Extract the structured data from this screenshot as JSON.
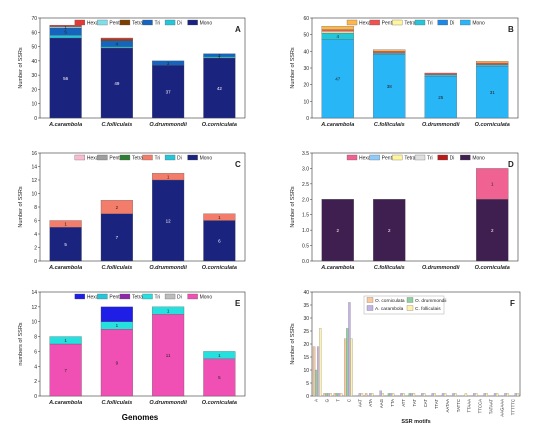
{
  "figure": {
    "xlabel_bottom": "Genomes"
  },
  "chart_data": [
    {
      "id": "A",
      "type": "bar",
      "stacked": true,
      "panel_label": "A",
      "ylabel": "Number of SSRs",
      "xlabel": "",
      "ylim": [
        0,
        70
      ],
      "yticks": [
        0,
        10,
        20,
        30,
        40,
        50,
        60,
        70
      ],
      "legend": {
        "placement": "top"
      },
      "categories": [
        "A.carambola",
        "C.folliculais",
        "O.drummondii",
        "O.corniculata"
      ],
      "series": [
        {
          "name": "Mono",
          "color": "#1a237e",
          "values": [
            56,
            49,
            37,
            42
          ]
        },
        {
          "name": "Di",
          "color": "#26c6da",
          "values": [
            2,
            1,
            0,
            1
          ]
        },
        {
          "name": "Tri",
          "color": "#1565c0",
          "values": [
            5,
            4,
            3,
            2
          ]
        },
        {
          "name": "Tetra",
          "color": "#7b3f00",
          "values": [
            0,
            1,
            0,
            0
          ]
        },
        {
          "name": "Penta",
          "color": "#80deea",
          "values": [
            1,
            0,
            0,
            0
          ]
        },
        {
          "name": "Hexa",
          "color": "#e53935",
          "values": [
            1,
            1,
            0,
            0
          ]
        }
      ],
      "labels": [
        {
          "category": 0,
          "series": "Mono",
          "text": "56"
        },
        {
          "category": 0,
          "series": "Tri",
          "text": "5"
        },
        {
          "category": 0,
          "series": "Penta",
          "text": "1"
        },
        {
          "category": 1,
          "series": "Mono",
          "text": "49"
        },
        {
          "category": 1,
          "series": "Tri",
          "text": "4"
        },
        {
          "category": 2,
          "series": "Mono",
          "text": "37"
        },
        {
          "category": 2,
          "series": "Tri",
          "text": "3"
        },
        {
          "category": 3,
          "series": "Mono",
          "text": "42"
        },
        {
          "category": 3,
          "series": "Tri",
          "text": "2"
        },
        {
          "category": 3,
          "series": "Di",
          "text": "1"
        }
      ]
    },
    {
      "id": "B",
      "type": "bar",
      "stacked": true,
      "panel_label": "B",
      "ylabel": "Number of SSRs",
      "xlabel": "",
      "ylim": [
        0,
        60
      ],
      "yticks": [
        0,
        10,
        20,
        30,
        40,
        50,
        60
      ],
      "legend": {
        "placement": "top"
      },
      "categories": [
        "A.carambola",
        "C.folliculais",
        "O.drummondii",
        "O.corniculata"
      ],
      "series": [
        {
          "name": "Mono",
          "color": "#29b6f6",
          "values": [
            47,
            38,
            25,
            31
          ]
        },
        {
          "name": "Di",
          "color": "#1e88e5",
          "values": [
            0,
            0,
            0,
            0
          ]
        },
        {
          "name": "Tri",
          "color": "#26c6da",
          "values": [
            4,
            1,
            1,
            1
          ]
        },
        {
          "name": "Tetra",
          "color": "#fff59d",
          "values": [
            1,
            0,
            0,
            0
          ]
        },
        {
          "name": "Penta",
          "color": "#ef5350",
          "values": [
            1,
            1,
            1,
            1
          ]
        },
        {
          "name": "Hexa",
          "color": "#ffb74d",
          "values": [
            2,
            1,
            0,
            1
          ]
        }
      ],
      "labels": [
        {
          "category": 0,
          "series": "Mono",
          "text": "47"
        },
        {
          "category": 0,
          "series": "Tri",
          "text": "4"
        },
        {
          "category": 1,
          "series": "Mono",
          "text": "38"
        },
        {
          "category": 2,
          "series": "Mono",
          "text": "25"
        },
        {
          "category": 3,
          "series": "Mono",
          "text": "31"
        }
      ]
    },
    {
      "id": "C",
      "type": "bar",
      "stacked": true,
      "panel_label": "C",
      "ylabel": "Number of SSRs",
      "xlabel": "",
      "ylim": [
        0,
        16
      ],
      "yticks": [
        0,
        2,
        4,
        6,
        8,
        10,
        12,
        14,
        16
      ],
      "legend": {
        "placement": "top"
      },
      "categories": [
        "A.carambola",
        "C.folliculais",
        "O.drummondii",
        "O.corniculata"
      ],
      "series": [
        {
          "name": "Mono",
          "color": "#1a237e",
          "values": [
            5,
            7,
            12,
            6
          ]
        },
        {
          "name": "Di",
          "color": "#26c6da",
          "values": [
            0,
            0,
            0,
            0
          ]
        },
        {
          "name": "Tri",
          "color": "#f47c6b",
          "values": [
            1,
            2,
            1,
            1
          ]
        },
        {
          "name": "Tetra",
          "color": "#2e7d32",
          "values": [
            0,
            0,
            0,
            0
          ]
        },
        {
          "name": "Penta",
          "color": "#9e9e9e",
          "values": [
            0,
            0,
            0,
            0
          ]
        },
        {
          "name": "Hexa",
          "color": "#f8bbd0",
          "values": [
            0,
            0,
            0,
            0
          ]
        }
      ],
      "labels": [
        {
          "category": 0,
          "series": "Mono",
          "text": "5"
        },
        {
          "category": 0,
          "series": "Tri",
          "text": "1"
        },
        {
          "category": 1,
          "series": "Mono",
          "text": "7"
        },
        {
          "category": 1,
          "series": "Tri",
          "text": "2"
        },
        {
          "category": 2,
          "series": "Mono",
          "text": "12"
        },
        {
          "category": 2,
          "series": "Tri",
          "text": "1"
        },
        {
          "category": 3,
          "series": "Mono",
          "text": "6"
        },
        {
          "category": 3,
          "series": "Tri",
          "text": "1"
        }
      ]
    },
    {
      "id": "D",
      "type": "bar",
      "stacked": true,
      "panel_label": "D",
      "ylabel": "Number of SSRs",
      "xlabel": "",
      "ylim": [
        0,
        3.5
      ],
      "yticks": [
        0,
        0.5,
        1.0,
        1.5,
        2.0,
        2.5,
        3.0,
        3.5
      ],
      "legend": {
        "placement": "top"
      },
      "categories": [
        "A.carambola",
        "C.folliculais",
        "O.drummondii",
        "O.corniculata"
      ],
      "series": [
        {
          "name": "Mono",
          "color": "#3f1f4f",
          "values": [
            2,
            2,
            0,
            2
          ]
        },
        {
          "name": "Di",
          "color": "#b71c1c",
          "values": [
            0,
            0,
            0,
            0
          ]
        },
        {
          "name": "Tri",
          "color": "#e0e0e0",
          "values": [
            0,
            0,
            0,
            0
          ]
        },
        {
          "name": "Tetra",
          "color": "#fff59d",
          "values": [
            0,
            0,
            0,
            0
          ]
        },
        {
          "name": "Penta",
          "color": "#90caf9",
          "values": [
            0,
            0,
            0,
            0
          ]
        },
        {
          "name": "Hexa",
          "color": "#f06292",
          "values": [
            0,
            0,
            0,
            1
          ]
        }
      ],
      "labels": [
        {
          "category": 0,
          "series": "Mono",
          "text": "2"
        },
        {
          "category": 1,
          "series": "Mono",
          "text": "2"
        },
        {
          "category": 3,
          "series": "Mono",
          "text": "2"
        },
        {
          "category": 3,
          "series": "Hexa",
          "text": "1"
        }
      ]
    },
    {
      "id": "E",
      "type": "bar",
      "stacked": true,
      "panel_label": "E",
      "ylabel": "numbers of SSRs",
      "xlabel": "Genomes",
      "ylim": [
        0,
        14
      ],
      "yticks": [
        0,
        2,
        4,
        6,
        8,
        10,
        12,
        14
      ],
      "legend": {
        "placement": "top"
      },
      "categories": [
        "A.carambola",
        "C.folliculais",
        "O.drummondii",
        "O.corniculata"
      ],
      "series": [
        {
          "name": "Mono",
          "color": "#f050b4",
          "values": [
            7,
            9,
            11,
            5
          ]
        },
        {
          "name": "Di",
          "color": "#bdbdbd",
          "values": [
            0,
            0,
            0,
            0
          ]
        },
        {
          "name": "Tri",
          "color": "#26e0e0",
          "values": [
            1,
            1,
            1,
            1
          ]
        },
        {
          "name": "Tetra",
          "color": "#8e24aa",
          "values": [
            0,
            0,
            0,
            0
          ]
        },
        {
          "name": "Penta",
          "color": "#26c6da",
          "values": [
            0,
            0,
            0,
            0
          ]
        },
        {
          "name": "Hexa",
          "color": "#1e1ee6",
          "values": [
            0,
            2,
            0,
            0
          ]
        }
      ],
      "labels": [
        {
          "category": 0,
          "series": "Mono",
          "text": "7"
        },
        {
          "category": 0,
          "series": "Tri",
          "text": "1"
        },
        {
          "category": 1,
          "series": "Mono",
          "text": "9"
        },
        {
          "category": 1,
          "series": "Tri",
          "text": "1"
        },
        {
          "category": 2,
          "series": "Mono",
          "text": "11"
        },
        {
          "category": 2,
          "series": "Tri",
          "text": "1"
        },
        {
          "category": 3,
          "series": "Mono",
          "text": "5"
        },
        {
          "category": 3,
          "series": "Tri",
          "text": "1"
        }
      ]
    },
    {
      "id": "F",
      "type": "bar",
      "stacked": false,
      "panel_label": "F",
      "ylabel": "Number of SSRs",
      "xlabel": "SSR motifs",
      "ylim": [
        0,
        40
      ],
      "yticks": [
        0,
        5,
        10,
        15,
        20,
        25,
        30,
        35,
        40
      ],
      "legend": {
        "placement": "top-left"
      },
      "categories": [
        "A",
        "C",
        "G",
        "T",
        "AC",
        "AT",
        "AAC",
        "AAT",
        "ATA",
        "ATT",
        "TAT",
        "CAT",
        "TTAT",
        "AATAA",
        "TATTC",
        "TTAAA",
        "TTCCA",
        "TATAAT",
        "AAGAAA",
        "TTTTTC"
      ],
      "tick_categories": [
        "A",
        "G",
        "T",
        "C",
        "AAT",
        "ATA",
        "AAG",
        "TTA",
        "ATT",
        "TAT",
        "CAT",
        "TTAT",
        "AATAA",
        "TATTC",
        "TTAAA",
        "TTCCA",
        "TATAAT",
        "AAGAAA",
        "TTTTTC"
      ],
      "series": [
        {
          "name": "O. corniculata",
          "color": "#fcc89b",
          "values": [
            19,
            1,
            1,
            22,
            0,
            1,
            0,
            0,
            0,
            0,
            0,
            0,
            0,
            0,
            0,
            0,
            0,
            0,
            0,
            0
          ]
        },
        {
          "name": "O. drummondii",
          "color": "#8fd19e",
          "values": [
            10,
            1,
            1,
            26,
            0,
            0,
            0,
            1,
            0,
            1,
            0,
            0,
            0,
            0,
            0,
            0,
            0,
            0,
            0,
            0
          ]
        },
        {
          "name": "A. carambola",
          "color": "#c5b3e6",
          "values": [
            19,
            1,
            1,
            36,
            1,
            1,
            2,
            1,
            1,
            1,
            1,
            1,
            1,
            1,
            0,
            1,
            1,
            1,
            1,
            1
          ]
        },
        {
          "name": "C. folliculais",
          "color": "#fff1a8",
          "values": [
            26,
            1,
            1,
            22,
            1,
            1,
            1,
            1,
            1,
            1,
            1,
            1,
            1,
            1,
            1,
            1,
            1,
            1,
            1,
            1
          ]
        }
      ],
      "labels": []
    }
  ]
}
